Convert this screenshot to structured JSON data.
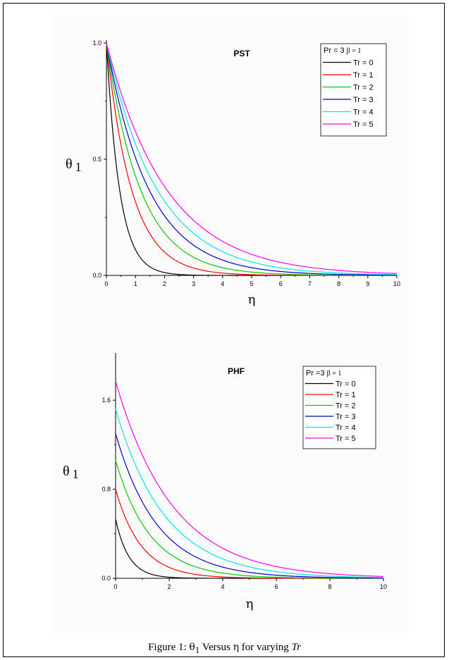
{
  "chart_data": [
    {
      "type": "line",
      "title": "PST",
      "xlabel": "η",
      "ylabel": "θ",
      "ylabel_subscript": "1",
      "xlim": [
        0,
        10
      ],
      "ylim": [
        0,
        1.0
      ],
      "x_ticks": [
        0,
        1,
        2,
        3,
        4,
        5,
        6,
        7,
        8,
        9,
        10
      ],
      "y_ticks": [
        "0.0",
        "0.5",
        "1.0"
      ],
      "y_tick_values": [
        0,
        0.5,
        1.0
      ],
      "legend": {
        "header": "Pr = 3",
        "header_beta": "β = 1",
        "placement": "top-right"
      },
      "series": [
        {
          "name": "Tr = 0",
          "color": "#000000",
          "y0": 1.0,
          "decay": 2.2
        },
        {
          "name": "Tr = 1",
          "color": "#ff0000",
          "y0": 1.0,
          "decay": 1.15
        },
        {
          "name": "Tr = 2",
          "color": "#00cc00",
          "y0": 1.0,
          "decay": 0.85
        },
        {
          "name": "Tr = 3",
          "color": "#0000cc",
          "y0": 1.0,
          "decay": 0.68
        },
        {
          "name": "Tr = 4",
          "color": "#00e5e5",
          "y0": 1.0,
          "decay": 0.57
        },
        {
          "name": "Tr = 5",
          "color": "#ff00ff",
          "y0": 1.0,
          "decay": 0.48
        }
      ]
    },
    {
      "type": "line",
      "title": "PHF",
      "xlabel": "η",
      "ylabel": "θ",
      "ylabel_subscript": "1",
      "xlim": [
        0,
        10
      ],
      "ylim": [
        0,
        2.0
      ],
      "x_ticks": [
        0,
        2,
        4,
        6,
        8,
        10
      ],
      "y_ticks": [
        "0.0",
        "0.8",
        "1.6"
      ],
      "y_tick_values": [
        0,
        0.8,
        1.6
      ],
      "legend": {
        "header": "Pr =3",
        "header_beta": "β = 1",
        "placement": "top-right"
      },
      "series": [
        {
          "name": "Tr = 0",
          "color": "#000000",
          "y0": 0.53,
          "decay": 2.0
        },
        {
          "name": "Tr = 1",
          "color": "#ff0000",
          "y0": 0.8,
          "decay": 1.05
        },
        {
          "name": "Tr = 2",
          "color": "#00cc00",
          "y0": 1.06,
          "decay": 0.78
        },
        {
          "name": "Tr = 3",
          "color": "#0000cc",
          "y0": 1.3,
          "decay": 0.64
        },
        {
          "name": "Tr = 4",
          "color": "#00e5e5",
          "y0": 1.52,
          "decay": 0.54
        },
        {
          "name": "Tr = 5",
          "color": "#ff00ff",
          "y0": 1.77,
          "decay": 0.47
        }
      ]
    }
  ],
  "caption": {
    "prefix": "Figure  1:",
    "theta": "θ",
    "theta_sub": "1",
    "versus": " Versus ",
    "eta": "η",
    "for_varying": " for varying ",
    "tr": "Tr"
  }
}
